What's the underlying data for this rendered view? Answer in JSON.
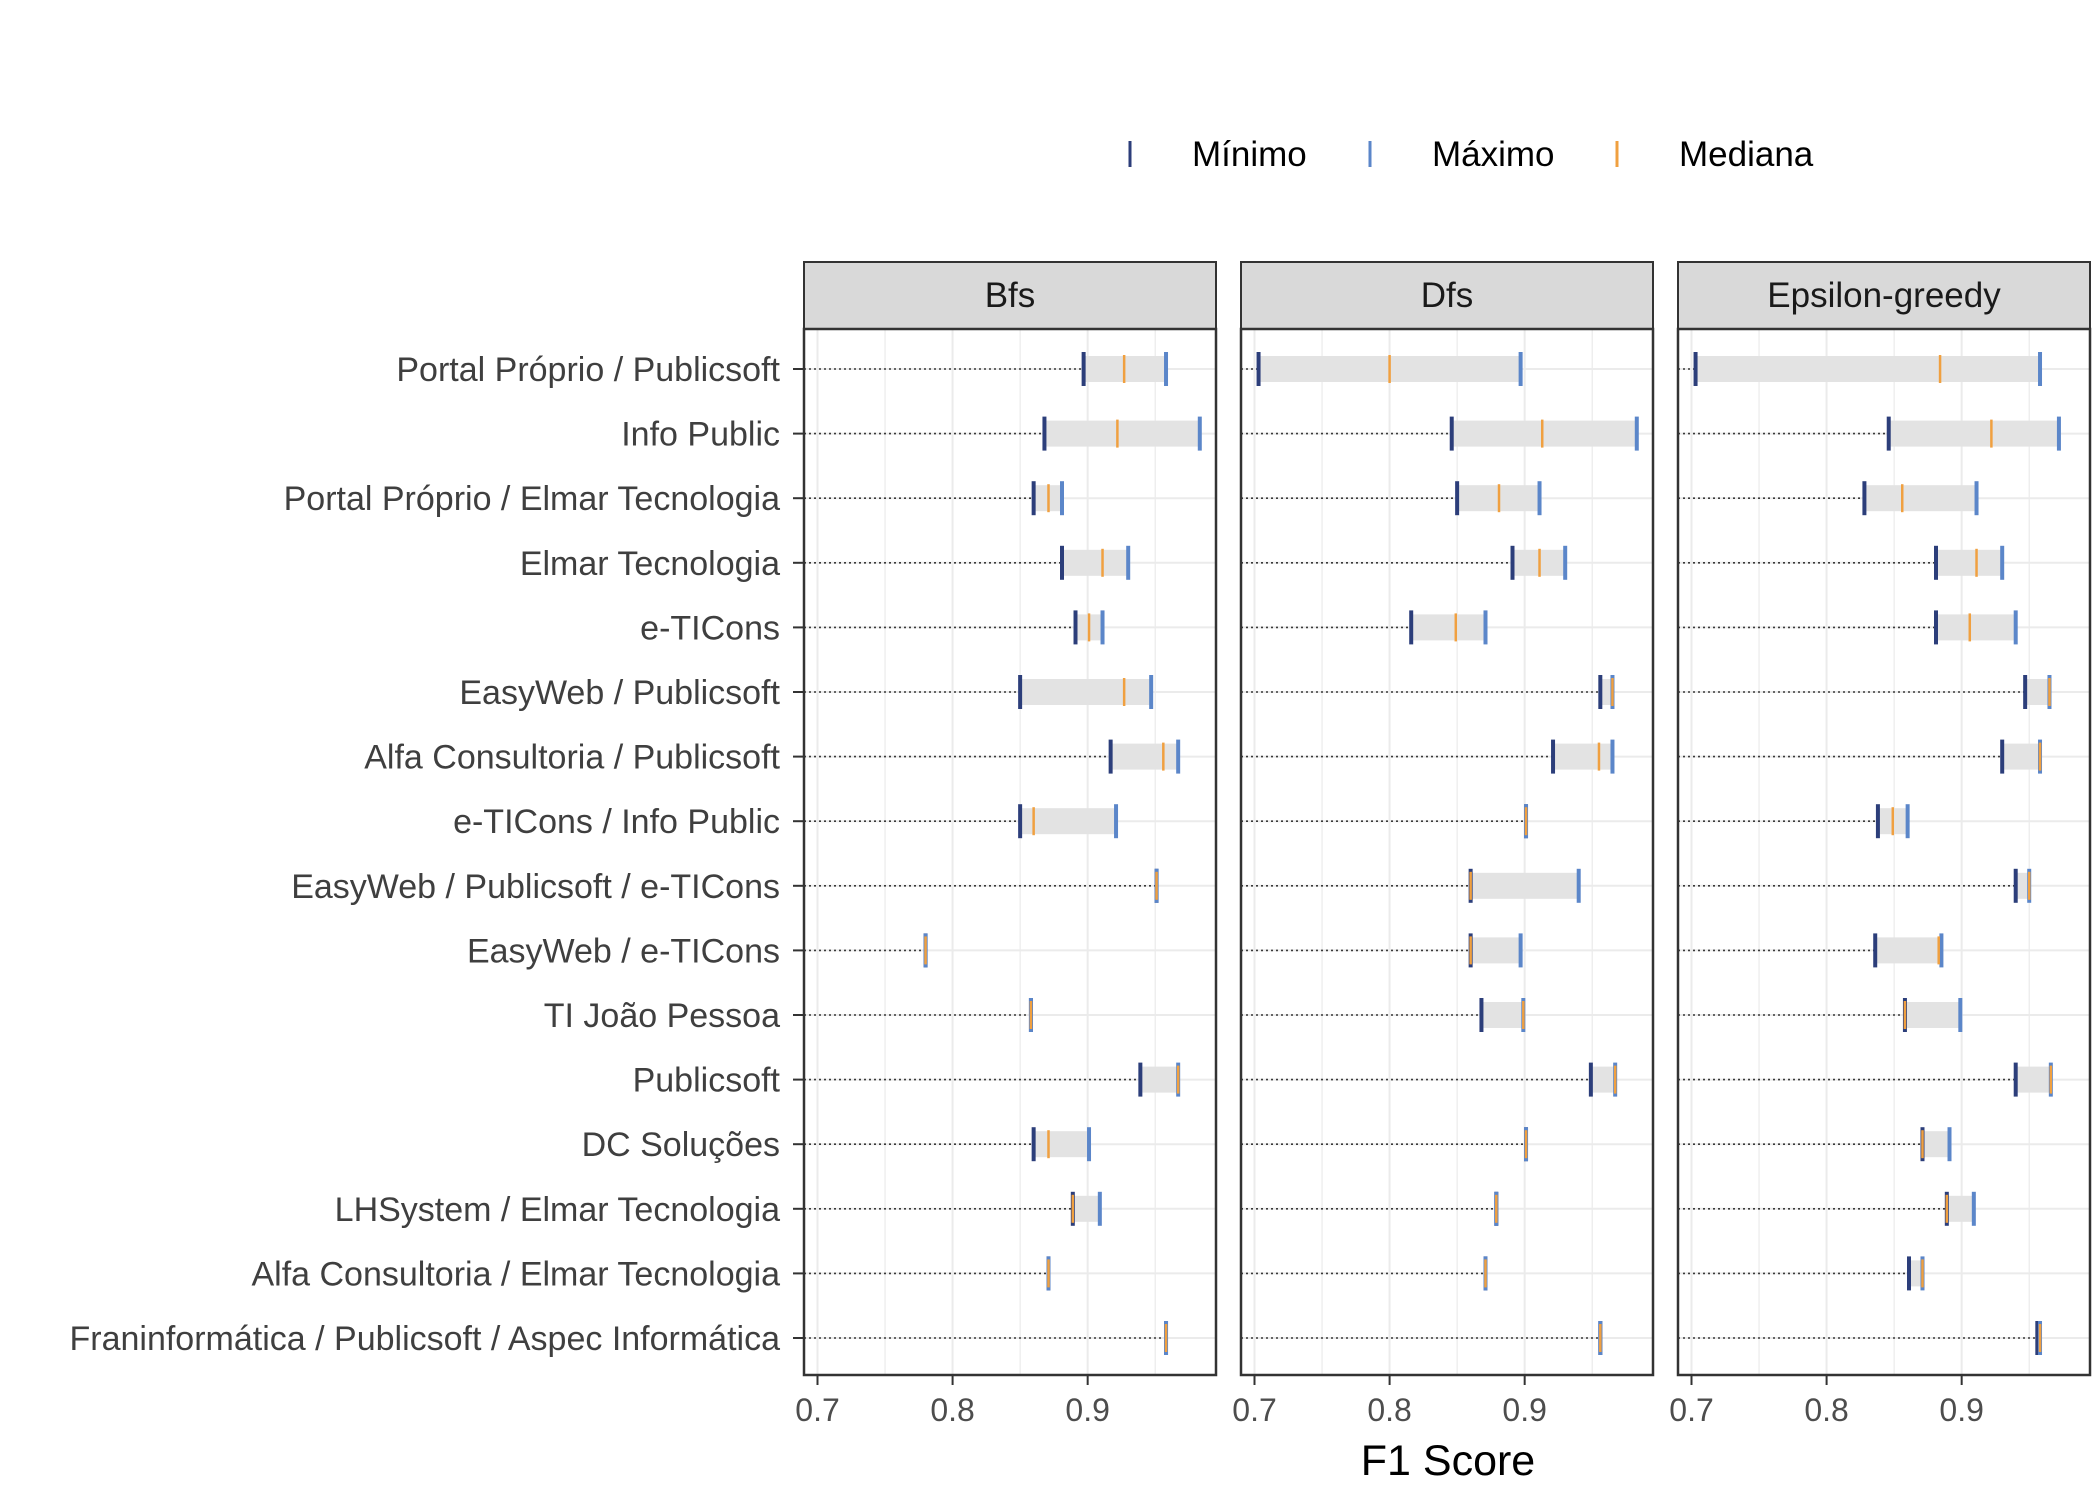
{
  "chart_data": {
    "type": "range-dot",
    "xlabel": "F1 Score",
    "ylabel": "",
    "xlim": [
      0.69,
      0.995
    ],
    "xticks": [
      0.7,
      0.8,
      0.9
    ],
    "x_tick_labels": [
      "0.7",
      "0.8",
      "0.9"
    ],
    "grid": true,
    "legend_position": "top-right",
    "legend": [
      {
        "key": "min",
        "label": "Mínimo",
        "color": "#2c3e7a"
      },
      {
        "key": "max",
        "label": "Máximo",
        "color": "#5b86c9"
      },
      {
        "key": "median",
        "label": "Mediana",
        "color": "#f0a040"
      }
    ],
    "categories": [
      "Portal Próprio / Publicsoft",
      "Info Public",
      "Portal Próprio / Elmar Tecnologia",
      "Elmar Tecnologia",
      "e-TICons",
      "EasyWeb / Publicsoft",
      "Alfa Consultoria / Publicsoft",
      "e-TICons / Info Public",
      "EasyWeb / Publicsoft / e-TICons",
      "EasyWeb / e-TICons",
      "TI João Pessoa",
      "Publicsoft",
      "DC Soluções",
      "LHSystem / Elmar Tecnologia",
      "Alfa Consultoria / Elmar Tecnologia",
      "Franinformática / Publicsoft / Aspec Informática"
    ],
    "facets": [
      {
        "name": "Bfs",
        "min": [
          0.897,
          0.868,
          0.86,
          0.881,
          0.891,
          0.85,
          0.917,
          0.85,
          0.951,
          0.78,
          0.858,
          0.939,
          0.86,
          0.889,
          0.871,
          0.958
        ],
        "max": [
          0.958,
          0.983,
          0.881,
          0.93,
          0.911,
          0.947,
          0.967,
          0.921,
          0.951,
          0.78,
          0.858,
          0.967,
          0.901,
          0.909,
          0.871,
          0.958
        ],
        "median": [
          0.927,
          0.922,
          0.871,
          0.911,
          0.901,
          0.927,
          0.956,
          0.86,
          0.951,
          0.78,
          0.858,
          0.967,
          0.871,
          0.889,
          0.871,
          0.958
        ]
      },
      {
        "name": "Dfs",
        "min": [
          0.703,
          0.846,
          0.85,
          0.891,
          0.816,
          0.956,
          0.921,
          0.901,
          0.86,
          0.86,
          0.868,
          0.949,
          0.901,
          0.879,
          0.871,
          0.956
        ],
        "max": [
          0.897,
          0.983,
          0.911,
          0.93,
          0.871,
          0.965,
          0.965,
          0.901,
          0.94,
          0.897,
          0.899,
          0.967,
          0.901,
          0.879,
          0.871,
          0.956
        ],
        "median": [
          0.8,
          0.913,
          0.881,
          0.911,
          0.849,
          0.965,
          0.955,
          0.901,
          0.86,
          0.86,
          0.899,
          0.967,
          0.901,
          0.879,
          0.871,
          0.956
        ]
      },
      {
        "name": "Epsilon-greedy",
        "min": [
          0.703,
          0.846,
          0.828,
          0.881,
          0.881,
          0.947,
          0.93,
          0.838,
          0.94,
          0.836,
          0.858,
          0.94,
          0.871,
          0.889,
          0.861,
          0.956
        ],
        "max": [
          0.958,
          0.972,
          0.911,
          0.93,
          0.94,
          0.965,
          0.958,
          0.86,
          0.95,
          0.885,
          0.899,
          0.966,
          0.891,
          0.909,
          0.871,
          0.958
        ],
        "median": [
          0.884,
          0.922,
          0.856,
          0.911,
          0.906,
          0.965,
          0.958,
          0.849,
          0.95,
          0.883,
          0.858,
          0.966,
          0.871,
          0.889,
          0.871,
          0.958
        ]
      }
    ]
  }
}
